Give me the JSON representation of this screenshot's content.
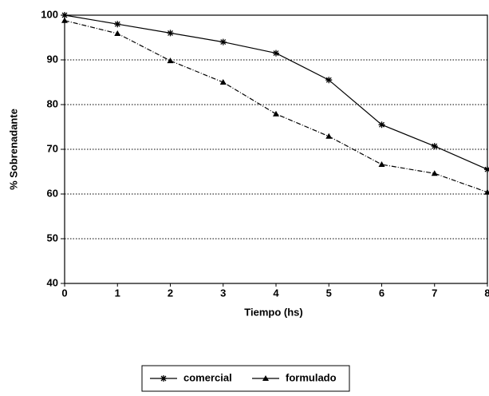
{
  "chart_data": {
    "type": "line",
    "x": [
      0,
      1,
      2,
      3,
      4,
      5,
      6,
      7,
      8
    ],
    "series": [
      {
        "name": "comercial",
        "color": "#000000",
        "values": [
          100,
          98,
          96,
          94,
          91.5,
          85.5,
          75.5,
          70.7,
          65.5
        ]
      },
      {
        "name": "formulado",
        "color": "#000000",
        "values": [
          98.8,
          95.9,
          89.8,
          85,
          77.9,
          72.9,
          66.6,
          64.6,
          60.4
        ]
      }
    ],
    "xlabel": "Tiempo (hs)",
    "ylabel": "% Sobrenadante",
    "xlim": [
      0,
      8
    ],
    "ylim": [
      40,
      100
    ],
    "xticks": [
      0,
      1,
      2,
      3,
      4,
      5,
      6,
      7,
      8
    ],
    "yticks": [
      40,
      50,
      60,
      70,
      80,
      90,
      100
    ],
    "grid": true,
    "legend": "bottom"
  }
}
